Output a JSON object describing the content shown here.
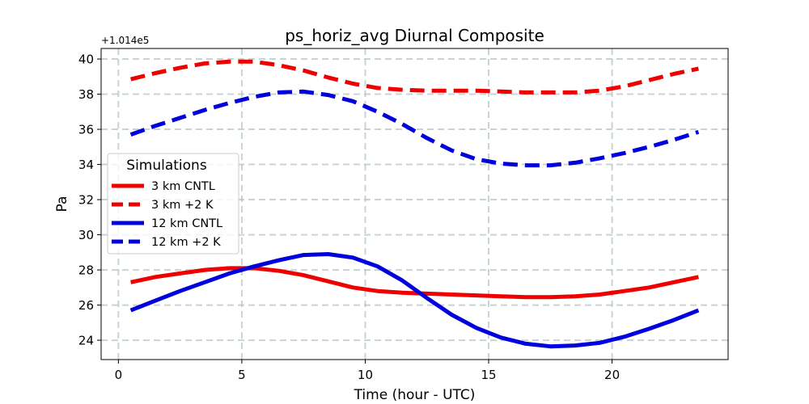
{
  "chart_data": {
    "type": "line",
    "title": "ps_horiz_avg Diurnal Composite",
    "xlabel": "Time (hour - UTC)",
    "ylabel": "Pa",
    "offset_label": "+1.014e5",
    "xlim": [
      -0.7,
      24.7
    ],
    "ylim": [
      22.9,
      40.6
    ],
    "xticks": [
      0,
      5,
      10,
      15,
      20
    ],
    "yticks": [
      24,
      26,
      28,
      30,
      32,
      34,
      36,
      38,
      40
    ],
    "grid": true,
    "legend": {
      "title": "Simulations",
      "placement": "center-left"
    },
    "x": [
      0.5,
      1.5,
      2.5,
      3.5,
      4.5,
      5.5,
      6.5,
      7.5,
      8.5,
      9.5,
      10.5,
      11.5,
      12.5,
      13.5,
      14.5,
      15.5,
      16.5,
      17.5,
      18.5,
      19.5,
      20.5,
      21.5,
      22.5,
      23.5
    ],
    "series": [
      {
        "name": "3 km CNTL",
        "color": "#ee0000",
        "dash": "solid",
        "values": [
          27.3,
          27.6,
          27.8,
          28.0,
          28.1,
          28.1,
          27.95,
          27.7,
          27.35,
          27.0,
          26.8,
          26.7,
          26.65,
          26.6,
          26.55,
          26.5,
          26.45,
          26.45,
          26.5,
          26.6,
          26.8,
          27.0,
          27.3,
          27.6
        ]
      },
      {
        "name": "3 km +2 K",
        "color": "#ee0000",
        "dash": "dashed",
        "values": [
          38.85,
          39.2,
          39.5,
          39.75,
          39.85,
          39.85,
          39.65,
          39.35,
          38.95,
          38.6,
          38.35,
          38.25,
          38.2,
          38.2,
          38.2,
          38.15,
          38.1,
          38.1,
          38.1,
          38.2,
          38.45,
          38.8,
          39.15,
          39.45
        ]
      },
      {
        "name": "12 km CNTL",
        "color": "#0000dd",
        "dash": "solid",
        "values": [
          25.7,
          26.25,
          26.8,
          27.3,
          27.8,
          28.2,
          28.55,
          28.85,
          28.9,
          28.7,
          28.2,
          27.4,
          26.4,
          25.45,
          24.7,
          24.15,
          23.8,
          23.65,
          23.7,
          23.85,
          24.2,
          24.65,
          25.15,
          25.7
        ]
      },
      {
        "name": "12 km +2 K",
        "color": "#0000dd",
        "dash": "dashed",
        "values": [
          35.7,
          36.2,
          36.65,
          37.1,
          37.5,
          37.85,
          38.1,
          38.15,
          37.95,
          37.6,
          37.0,
          36.3,
          35.5,
          34.8,
          34.3,
          34.05,
          33.95,
          33.95,
          34.1,
          34.35,
          34.65,
          35.0,
          35.4,
          35.85
        ]
      }
    ]
  }
}
